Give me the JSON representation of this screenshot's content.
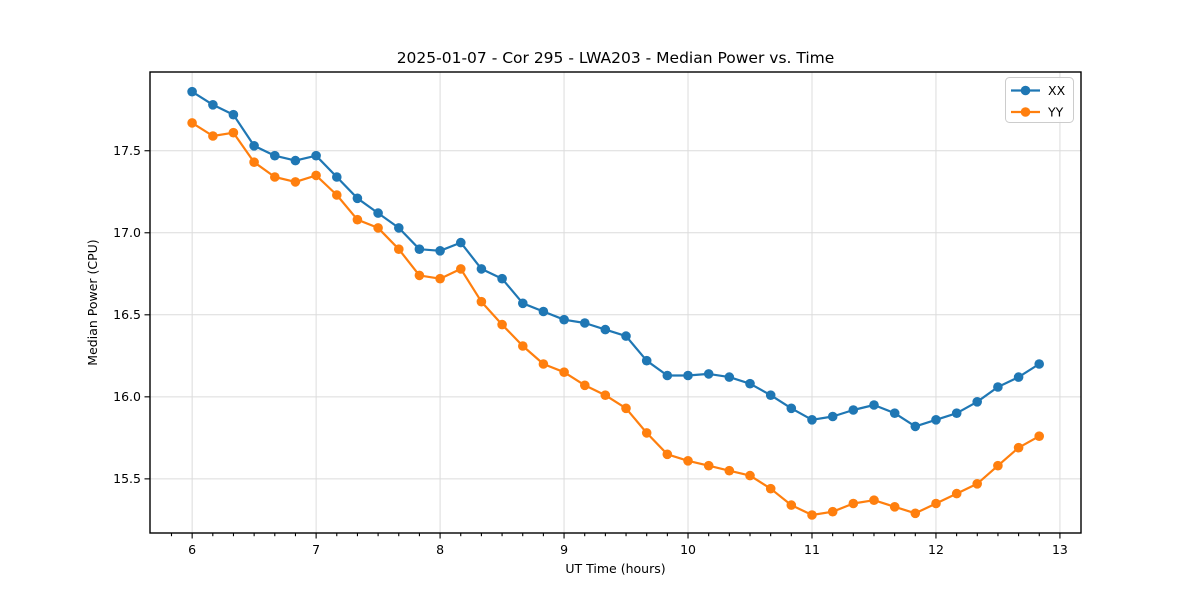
{
  "chart_data": {
    "type": "line",
    "title": "2025-01-07 - Cor 295 - LWA203 - Median Power vs. Time",
    "xlabel": "UT Time (hours)",
    "ylabel": "Median Power (CPU)",
    "xlim": [
      5.66,
      13.17
    ],
    "ylim": [
      15.17,
      17.98
    ],
    "xticks": [
      6,
      7,
      8,
      9,
      10,
      11,
      12,
      13
    ],
    "xtick_labels": [
      "6",
      "7",
      "8",
      "9",
      "10",
      "11",
      "12",
      "13"
    ],
    "yticks": [
      15.5,
      16.0,
      16.5,
      17.0,
      17.5
    ],
    "ytick_labels": [
      "15.5",
      "16.0",
      "16.5",
      "17.0",
      "17.5"
    ],
    "x_minor_step": 0.166667,
    "grid": true,
    "legend_position": "upper right",
    "background_color": "#ffffff",
    "grid_color": "#dcdcdc",
    "spine_color": "#000000",
    "x": [
      6.0,
      6.167,
      6.333,
      6.5,
      6.667,
      6.833,
      7.0,
      7.167,
      7.333,
      7.5,
      7.667,
      7.833,
      8.0,
      8.167,
      8.333,
      8.5,
      8.667,
      8.833,
      9.0,
      9.167,
      9.333,
      9.5,
      9.667,
      9.833,
      10.0,
      10.167,
      10.333,
      10.5,
      10.667,
      10.833,
      11.0,
      11.167,
      11.333,
      11.5,
      11.667,
      11.833,
      12.0,
      12.167,
      12.333,
      12.5,
      12.667,
      12.833
    ],
    "series": [
      {
        "name": "XX",
        "color": "#1f77b4",
        "values": [
          17.86,
          17.78,
          17.72,
          17.53,
          17.47,
          17.44,
          17.47,
          17.34,
          17.21,
          17.12,
          17.03,
          16.9,
          16.89,
          16.94,
          16.78,
          16.72,
          16.57,
          16.52,
          16.47,
          16.45,
          16.41,
          16.37,
          16.22,
          16.13,
          16.13,
          16.14,
          16.12,
          16.08,
          16.01,
          15.93,
          15.86,
          15.88,
          15.92,
          15.95,
          15.9,
          15.82,
          15.86,
          15.9,
          15.97,
          16.06,
          16.12,
          16.2
        ]
      },
      {
        "name": "YY",
        "color": "#ff7f0e",
        "values": [
          17.67,
          17.59,
          17.61,
          17.43,
          17.34,
          17.31,
          17.35,
          17.23,
          17.08,
          17.03,
          16.9,
          16.74,
          16.72,
          16.78,
          16.58,
          16.44,
          16.31,
          16.2,
          16.15,
          16.07,
          16.01,
          15.93,
          15.78,
          15.65,
          15.61,
          15.58,
          15.55,
          15.52,
          15.44,
          15.34,
          15.28,
          15.3,
          15.35,
          15.37,
          15.33,
          15.29,
          15.35,
          15.41,
          15.47,
          15.58,
          15.69,
          15.76
        ]
      }
    ]
  }
}
